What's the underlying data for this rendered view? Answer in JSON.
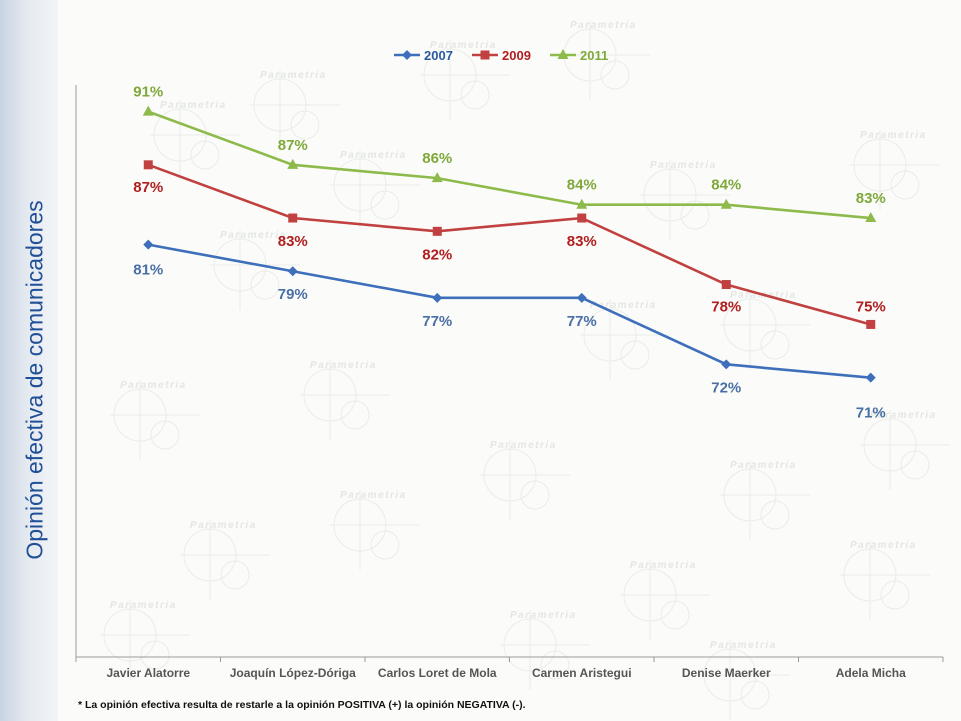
{
  "y_axis_title": "Opinión efectiva de comunicadores",
  "footnote": "* La opinión efectiva resulta de restarle a la opinión POSITIVA (+) la opinión NEGATIVA (-).",
  "watermark_text": "Parametria",
  "chart_data": {
    "type": "line",
    "categories": [
      "Javier Alatorre",
      "Joaquín López-Dóriga",
      "Carlos Loret de Mola",
      "Carmen Aristegui",
      "Denise Maerker",
      "Adela Micha"
    ],
    "series": [
      {
        "name": "2007",
        "color": "#3d6fba",
        "label_color": "#4a6fa5",
        "marker": "diamond",
        "values": [
          81,
          79,
          77,
          77,
          72,
          71
        ],
        "labels": [
          "81%",
          "79%",
          "77%",
          "77%",
          "72%",
          "71%"
        ]
      },
      {
        "name": "2009",
        "color": "#c0413f",
        "label_color": "#b01e1e",
        "marker": "square",
        "values": [
          87,
          83,
          82,
          83,
          78,
          75
        ],
        "labels": [
          "87%",
          "83%",
          "82%",
          "83%",
          "78%",
          "75%"
        ]
      },
      {
        "name": "2011",
        "color": "#8dba4a",
        "label_color": "#7fa83a",
        "marker": "triangle",
        "values": [
          91,
          87,
          86,
          84,
          84,
          83
        ],
        "labels": [
          "91%",
          "87%",
          "86%",
          "84%",
          "84%",
          "83%"
        ]
      }
    ],
    "ylim": [
      50,
      93
    ],
    "grid": false,
    "legend": "top-center"
  }
}
